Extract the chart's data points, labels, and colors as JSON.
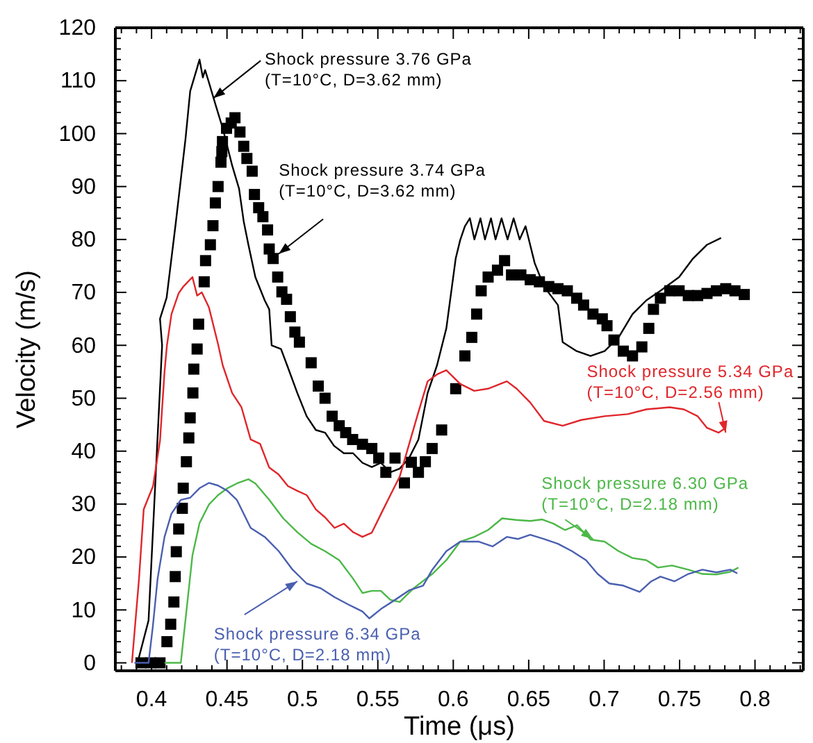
{
  "chart_data": {
    "type": "line",
    "xlabel": "Time (μs)",
    "ylabel": "Velocity (m/s)",
    "xlim": [
      0.376,
      0.832
    ],
    "ylim": [
      -1.5,
      120
    ],
    "xticks": [
      {
        "value": 0.4,
        "label": "0.4"
      },
      {
        "value": 0.45,
        "label": "0.45"
      },
      {
        "value": 0.5,
        "label": "0.5"
      },
      {
        "value": 0.55,
        "label": "0.55"
      },
      {
        "value": 0.6,
        "label": "0.6"
      },
      {
        "value": 0.65,
        "label": "0.65"
      },
      {
        "value": 0.7,
        "label": "0.7"
      },
      {
        "value": 0.75,
        "label": "0.75"
      },
      {
        "value": 0.8,
        "label": "0.8"
      }
    ],
    "yticks": [
      0,
      10,
      20,
      30,
      40,
      50,
      60,
      70,
      80,
      90,
      100,
      110,
      120
    ],
    "grid": false,
    "series": [
      {
        "color": "#000000",
        "marker": "none",
        "line_style": "solid",
        "x": [
          0.3907,
          0.398,
          0.407,
          0.4056,
          0.41,
          0.416,
          0.4225,
          0.4256,
          0.4302,
          0.4318,
          0.434,
          0.4355,
          0.438,
          0.4426,
          0.4472,
          0.4534,
          0.458,
          0.4611,
          0.4642,
          0.4688,
          0.475,
          0.478,
          0.4796,
          0.4858,
          0.4904,
          0.4966,
          0.5028,
          0.5089,
          0.515,
          0.521,
          0.5275,
          0.5336,
          0.5398,
          0.546,
          0.552,
          0.5583,
          0.5645,
          0.5707,
          0.5769,
          0.583,
          0.5892,
          0.5954,
          0.6016,
          0.6046,
          0.6077,
          0.611,
          0.614,
          0.618,
          0.621,
          0.625,
          0.628,
          0.632,
          0.636,
          0.64,
          0.644,
          0.6479,
          0.654,
          0.6602,
          0.6694,
          0.6725,
          0.6818,
          0.691,
          0.7003,
          0.7096,
          0.7188,
          0.728,
          0.7373,
          0.7497,
          0.7589,
          0.7682,
          0.7775
        ],
        "values": [
          0,
          8,
          60,
          65,
          69,
          83,
          99,
          108,
          112.4,
          114,
          110.6,
          112,
          109.7,
          105.3,
          101,
          94,
          89.6,
          83.4,
          79,
          72.9,
          68.5,
          66.8,
          60,
          59.3,
          55.8,
          51,
          46.6,
          44,
          43.5,
          41,
          39.6,
          39.6,
          37.8,
          37,
          37.8,
          36,
          36.7,
          38.7,
          42.2,
          51,
          56.2,
          63.2,
          76.4,
          79.9,
          82.5,
          84,
          80,
          84,
          80,
          84,
          80,
          84,
          80,
          84,
          80,
          82.5,
          75.5,
          71.1,
          67.6,
          60.6,
          58.9,
          58,
          58.9,
          61.5,
          65.9,
          68.5,
          70.3,
          72.9,
          76.4,
          79,
          80.3
        ]
      },
      {
        "type": "scatter",
        "color": "#000000",
        "marker": "square",
        "x": [
          0.393,
          0.3994,
          0.4056,
          0.4102,
          0.4127,
          0.4148,
          0.4157,
          0.4164,
          0.418,
          0.4204,
          0.421,
          0.4231,
          0.4247,
          0.4256,
          0.4274,
          0.428,
          0.4302,
          0.4312,
          0.4349,
          0.4358,
          0.439,
          0.4407,
          0.4423,
          0.4441,
          0.446,
          0.4466,
          0.447,
          0.4497,
          0.4528,
          0.4553,
          0.4586,
          0.4611,
          0.4632,
          0.4667,
          0.4682,
          0.471,
          0.4738,
          0.4769,
          0.478,
          0.4806,
          0.4836,
          0.4864,
          0.4895,
          0.492,
          0.495,
          0.498,
          0.5058,
          0.5105,
          0.515,
          0.5197,
          0.5244,
          0.5287,
          0.5333,
          0.5398,
          0.546,
          0.5506,
          0.5553,
          0.5614,
          0.5676,
          0.5722,
          0.5769,
          0.5815,
          0.586,
          0.5923,
          0.6016,
          0.6077,
          0.6123,
          0.6155,
          0.6185,
          0.6231,
          0.6293,
          0.634,
          0.6386,
          0.6448,
          0.651,
          0.6571,
          0.6633,
          0.6694,
          0.6756,
          0.6818,
          0.6864,
          0.6926,
          0.6988,
          0.7019,
          0.7065,
          0.7127,
          0.7188,
          0.725,
          0.7296,
          0.7327,
          0.7373,
          0.7435,
          0.7497,
          0.7558,
          0.762,
          0.7682,
          0.7744,
          0.7806,
          0.7867,
          0.7929
        ],
        "values": [
          0,
          0,
          0,
          4,
          7.3,
          11.5,
          16.3,
          21,
          25.3,
          29.2,
          33,
          38,
          42.5,
          46.3,
          51,
          55.5,
          59.3,
          64,
          72,
          76,
          79,
          82.6,
          86.9,
          90,
          94.6,
          96.6,
          98.5,
          101,
          102,
          103,
          100.3,
          97.6,
          95.3,
          92.9,
          88.5,
          86,
          84.3,
          81.8,
          78.2,
          76.4,
          72.9,
          70.1,
          68.7,
          65.4,
          62.5,
          60.6,
          56.7,
          52.3,
          50,
          46.6,
          44.8,
          43.5,
          42.2,
          41.3,
          40.5,
          38.7,
          36,
          38.7,
          34,
          37.9,
          36,
          38,
          40.5,
          44,
          51.8,
          58,
          61.5,
          65.9,
          70.3,
          72.9,
          74.2,
          76,
          73.3,
          73.3,
          72.4,
          72,
          71.1,
          70.7,
          70.3,
          68.9,
          67.6,
          65.9,
          65,
          63.7,
          61,
          58.9,
          58,
          59.7,
          63.2,
          66.8,
          68.9,
          70.3,
          70.3,
          69.4,
          69.4,
          69.8,
          70.3,
          70.7,
          70.3,
          69.6
        ]
      },
      {
        "type": "line",
        "color": "#e0262b",
        "marker": "none",
        "line_style": "solid",
        "x": [
          0.387,
          0.3917,
          0.3948,
          0.401,
          0.4056,
          0.4086,
          0.4102,
          0.4132,
          0.4179,
          0.4208,
          0.4271,
          0.4302,
          0.4333,
          0.438,
          0.4441,
          0.4472,
          0.4534,
          0.4596,
          0.4657,
          0.4719,
          0.478,
          0.4842,
          0.4904,
          0.4966,
          0.5028,
          0.5089,
          0.515,
          0.5213,
          0.5275,
          0.5336,
          0.5398,
          0.546,
          0.5522,
          0.5583,
          0.5645,
          0.5707,
          0.5769,
          0.583,
          0.5892,
          0.5954,
          0.6046,
          0.6139,
          0.623,
          0.6355,
          0.642,
          0.651,
          0.6602,
          0.6725,
          0.6849,
          0.7003,
          0.7157,
          0.728,
          0.7435,
          0.7528,
          0.762,
          0.7682,
          0.7759,
          0.7806
        ],
        "values": [
          0,
          15.9,
          29,
          33.4,
          42,
          55,
          60,
          65.9,
          69.8,
          71,
          72.9,
          69.4,
          70,
          67.2,
          60.2,
          56.2,
          51,
          48.3,
          42.2,
          41.4,
          36.9,
          35.6,
          33.4,
          32.5,
          31.7,
          29,
          27.5,
          25.5,
          26.3,
          24.7,
          23.8,
          24.6,
          28.2,
          31.7,
          35.2,
          41.3,
          47.4,
          53.2,
          54.5,
          55.3,
          52.7,
          51.4,
          51.8,
          53.2,
          51.8,
          49.2,
          45.7,
          44.8,
          45.9,
          46.6,
          47,
          47.9,
          48.3,
          47.9,
          46.6,
          44.4,
          43.5,
          44.4
        ]
      },
      {
        "type": "line",
        "color": "#4cb848",
        "marker": "none",
        "line_style": "solid",
        "x": [
          0.4086,
          0.4194,
          0.4241,
          0.4271,
          0.4318,
          0.438,
          0.4441,
          0.4503,
          0.4565,
          0.4642,
          0.4688,
          0.478,
          0.4873,
          0.4966,
          0.5058,
          0.515,
          0.5244,
          0.5336,
          0.5398,
          0.546,
          0.552,
          0.5583,
          0.5645,
          0.5737,
          0.5861,
          0.5954,
          0.6046,
          0.6139,
          0.6231,
          0.6324,
          0.6416,
          0.651,
          0.659,
          0.6664,
          0.674,
          0.682,
          0.691,
          0.7003,
          0.7096,
          0.7188,
          0.728,
          0.7357,
          0.745,
          0.7558,
          0.7651,
          0.7744,
          0.7836,
          0.789
        ],
        "values": [
          0,
          0,
          12.4,
          20.3,
          26.4,
          29.9,
          31.7,
          33,
          33.9,
          34.7,
          33.9,
          30.8,
          27.3,
          24.7,
          22.5,
          21.1,
          19.4,
          15.9,
          13.2,
          13.6,
          13.6,
          11.9,
          11.5,
          14.1,
          16.8,
          19.4,
          22.9,
          23.8,
          25.1,
          27.3,
          27,
          26.8,
          27.1,
          26.3,
          25.1,
          26,
          23.3,
          22.9,
          21.1,
          19.8,
          19.4,
          18,
          18.4,
          17.6,
          16.8,
          16.7,
          17.2,
          18
        ]
      },
      {
        "type": "line",
        "color": "#4a5fb0",
        "marker": "none",
        "line_style": "solid",
        "x": [
          0.3886,
          0.398,
          0.4009,
          0.404,
          0.4086,
          0.4132,
          0.4194,
          0.4256,
          0.4318,
          0.438,
          0.4441,
          0.4503,
          0.4565,
          0.4657,
          0.475,
          0.4843,
          0.4935,
          0.5028,
          0.512,
          0.5213,
          0.5306,
          0.5398,
          0.5444,
          0.5522,
          0.5614,
          0.5707,
          0.58,
          0.5861,
          0.5954,
          0.6046,
          0.617,
          0.626,
          0.6355,
          0.643,
          0.651,
          0.66,
          0.6694,
          0.6787,
          0.688,
          0.6957,
          0.7034,
          0.7127,
          0.7235,
          0.7312,
          0.7373,
          0.7466,
          0.7558,
          0.7651,
          0.7744,
          0.7836,
          0.7883
        ],
        "values": [
          0,
          0,
          7,
          15.9,
          23.8,
          28.2,
          30.8,
          31.2,
          33,
          34,
          33.5,
          32.5,
          30.8,
          25.5,
          23.8,
          21.1,
          17.6,
          15,
          14.1,
          12.4,
          11,
          9.7,
          8.4,
          10.2,
          11.9,
          13.7,
          14.6,
          17.6,
          21.1,
          22.9,
          22.9,
          22,
          23.8,
          23.4,
          24.2,
          23.4,
          22.5,
          21.1,
          19.4,
          16.8,
          15,
          14.6,
          13.4,
          15.4,
          16.3,
          15.4,
          16.8,
          17.6,
          17.1,
          17.6,
          16.9
        ]
      }
    ],
    "annotations": [
      {
        "text": "Shock pressure 3.76 GPa\n(T=10°C, D=3.62 mm)",
        "x": 0.441,
        "y": 106.7
      },
      {
        "text": "Shock pressure 3.74 GPa\n(T=10°C, D=3.62 mm)",
        "x": 0.4843,
        "y": 77.3
      },
      {
        "text": "Shock pressure 5.34 GPa\n(T=10°C, D=2.56 mm)",
        "x": 0.7806,
        "y": 43.5
      },
      {
        "text": "Shock pressure 6.30 GPa\n(T=10°C, D=2.18 mm)",
        "x": 0.6926,
        "y": 23.4
      },
      {
        "text": "Shock pressure 6.34 GPa\n(T=10°C, D=2.18 mm)",
        "x": 0.4966,
        "y": 15.4
      }
    ]
  }
}
